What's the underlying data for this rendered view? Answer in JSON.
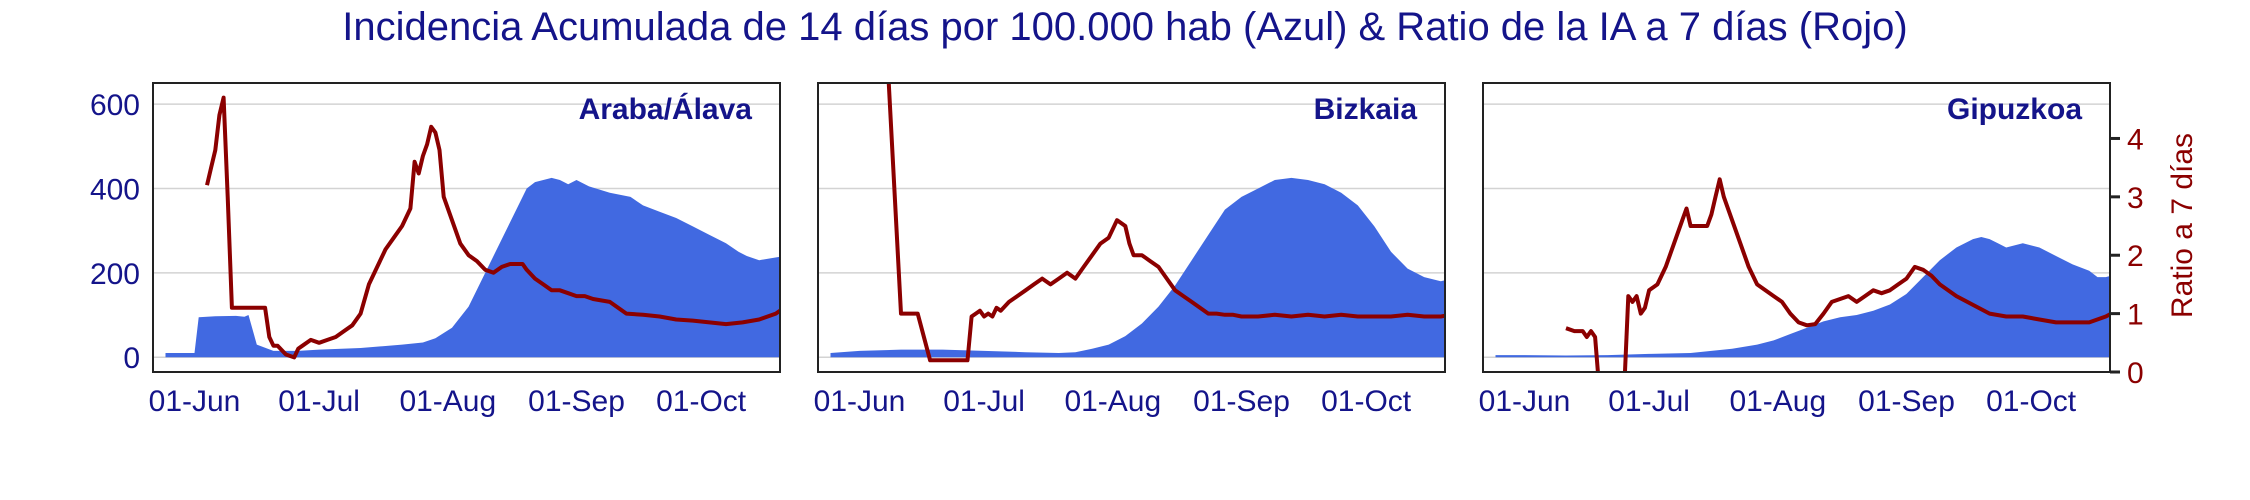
{
  "title": "Incidencia Acumulada de 14 días por 100.000 hab (Azul) & Ratio de la IA a 7 días (Rojo)",
  "colors": {
    "area": "#4169e1",
    "ratio": "#8b0000",
    "text": "#14148a",
    "grid": "#d3d3d3"
  },
  "chart_data": {
    "type": "area",
    "x_ticks": [
      "01-Jun",
      "01-Jul",
      "01-Aug",
      "01-Sep",
      "01-Oct"
    ],
    "x_tick_days": [
      0,
      30,
      61,
      92,
      122
    ],
    "xlim_days": [
      -10,
      141
    ],
    "ylim_left": [
      -35,
      650
    ],
    "ylim_right": [
      0,
      4.95
    ],
    "y_ticks_left": [
      0,
      200,
      400,
      600
    ],
    "y_ticks_right": [
      0,
      1,
      2,
      3,
      4
    ],
    "ylabel_right": "Ratio a 7 días",
    "grid": "horizontal",
    "panels": [
      {
        "name": "Araba/Álava",
        "incidence": [
          [
            -7,
            10
          ],
          [
            -3,
            10
          ],
          [
            0,
            10
          ],
          [
            1,
            95
          ],
          [
            5,
            97
          ],
          [
            10,
            98
          ],
          [
            12,
            96
          ],
          [
            13,
            100
          ],
          [
            15,
            30
          ],
          [
            19,
            15
          ],
          [
            25,
            15
          ],
          [
            30,
            18
          ],
          [
            40,
            22
          ],
          [
            50,
            30
          ],
          [
            55,
            35
          ],
          [
            58,
            45
          ],
          [
            62,
            70
          ],
          [
            66,
            120
          ],
          [
            70,
            200
          ],
          [
            74,
            280
          ],
          [
            78,
            360
          ],
          [
            80,
            400
          ],
          [
            82,
            415
          ],
          [
            86,
            425
          ],
          [
            88,
            420
          ],
          [
            90,
            410
          ],
          [
            92,
            420
          ],
          [
            95,
            405
          ],
          [
            100,
            390
          ],
          [
            105,
            380
          ],
          [
            108,
            360
          ],
          [
            112,
            345
          ],
          [
            116,
            330
          ],
          [
            120,
            310
          ],
          [
            124,
            290
          ],
          [
            128,
            270
          ],
          [
            131,
            250
          ],
          [
            133,
            240
          ],
          [
            136,
            230
          ],
          [
            139,
            235
          ],
          [
            142,
            240
          ],
          [
            145,
            260
          ],
          [
            147,
            295
          ],
          [
            149,
            320
          ]
        ],
        "ratio": [
          [
            3,
            3.2
          ],
          [
            4,
            3.5
          ],
          [
            5,
            3.8
          ],
          [
            6,
            4.4
          ],
          [
            7,
            4.7
          ],
          [
            8,
            3.0
          ],
          [
            9,
            1.1
          ],
          [
            11,
            1.1
          ],
          [
            13,
            1.1
          ],
          [
            15,
            1.1
          ],
          [
            16,
            1.1
          ],
          [
            17,
            1.1
          ],
          [
            18,
            0.6
          ],
          [
            19,
            0.45
          ],
          [
            20,
            0.45
          ],
          [
            22,
            0.3
          ],
          [
            24,
            0.25
          ],
          [
            25,
            0.4
          ],
          [
            26,
            0.45
          ],
          [
            28,
            0.55
          ],
          [
            30,
            0.5
          ],
          [
            32,
            0.55
          ],
          [
            34,
            0.6
          ],
          [
            36,
            0.7
          ],
          [
            38,
            0.8
          ],
          [
            40,
            1.0
          ],
          [
            42,
            1.5
          ],
          [
            44,
            1.8
          ],
          [
            46,
            2.1
          ],
          [
            48,
            2.3
          ],
          [
            50,
            2.5
          ],
          [
            52,
            2.8
          ],
          [
            53,
            3.6
          ],
          [
            54,
            3.4
          ],
          [
            55,
            3.7
          ],
          [
            56,
            3.9
          ],
          [
            57,
            4.2
          ],
          [
            58,
            4.1
          ],
          [
            59,
            3.8
          ],
          [
            60,
            3.0
          ],
          [
            62,
            2.6
          ],
          [
            64,
            2.2
          ],
          [
            66,
            2.0
          ],
          [
            68,
            1.9
          ],
          [
            70,
            1.75
          ],
          [
            72,
            1.7
          ],
          [
            74,
            1.8
          ],
          [
            76,
            1.85
          ],
          [
            78,
            1.85
          ],
          [
            79,
            1.85
          ],
          [
            80,
            1.75
          ],
          [
            82,
            1.6
          ],
          [
            84,
            1.5
          ],
          [
            86,
            1.4
          ],
          [
            88,
            1.4
          ],
          [
            90,
            1.35
          ],
          [
            92,
            1.3
          ],
          [
            94,
            1.3
          ],
          [
            96,
            1.25
          ],
          [
            100,
            1.2
          ],
          [
            104,
            1.0
          ],
          [
            108,
            0.98
          ],
          [
            112,
            0.95
          ],
          [
            116,
            0.9
          ],
          [
            120,
            0.88
          ],
          [
            124,
            0.85
          ],
          [
            128,
            0.82
          ],
          [
            132,
            0.85
          ],
          [
            136,
            0.9
          ],
          [
            140,
            1.0
          ],
          [
            142,
            1.1
          ],
          [
            144,
            1.3
          ],
          [
            146,
            1.35
          ],
          [
            148,
            1.4
          ],
          [
            150,
            1.45
          ]
        ]
      },
      {
        "name": "Bizkaia",
        "incidence": [
          [
            -7,
            10
          ],
          [
            0,
            15
          ],
          [
            10,
            18
          ],
          [
            20,
            18
          ],
          [
            30,
            15
          ],
          [
            40,
            12
          ],
          [
            48,
            10
          ],
          [
            52,
            12
          ],
          [
            56,
            20
          ],
          [
            60,
            30
          ],
          [
            64,
            50
          ],
          [
            68,
            80
          ],
          [
            72,
            120
          ],
          [
            76,
            170
          ],
          [
            80,
            230
          ],
          [
            84,
            290
          ],
          [
            88,
            350
          ],
          [
            92,
            380
          ],
          [
            96,
            400
          ],
          [
            100,
            420
          ],
          [
            104,
            425
          ],
          [
            108,
            420
          ],
          [
            112,
            410
          ],
          [
            116,
            390
          ],
          [
            120,
            360
          ],
          [
            124,
            310
          ],
          [
            128,
            250
          ],
          [
            132,
            210
          ],
          [
            136,
            190
          ],
          [
            140,
            180
          ],
          [
            144,
            190
          ],
          [
            148,
            220
          ],
          [
            152,
            280
          ],
          [
            154,
            330
          ],
          [
            156,
            375
          ]
        ],
        "ratio": [
          [
            7,
            5.0
          ],
          [
            10,
            1.0
          ],
          [
            12,
            1.0
          ],
          [
            14,
            1.0
          ],
          [
            17,
            0.2
          ],
          [
            20,
            0.2
          ],
          [
            24,
            0.2
          ],
          [
            26,
            0.2
          ],
          [
            27,
            0.95
          ],
          [
            28,
            1.0
          ],
          [
            29,
            1.05
          ],
          [
            30,
            0.95
          ],
          [
            31,
            1.0
          ],
          [
            32,
            0.95
          ],
          [
            33,
            1.1
          ],
          [
            34,
            1.05
          ],
          [
            36,
            1.2
          ],
          [
            38,
            1.3
          ],
          [
            40,
            1.4
          ],
          [
            42,
            1.5
          ],
          [
            44,
            1.6
          ],
          [
            46,
            1.5
          ],
          [
            48,
            1.6
          ],
          [
            50,
            1.7
          ],
          [
            52,
            1.6
          ],
          [
            54,
            1.8
          ],
          [
            56,
            2.0
          ],
          [
            58,
            2.2
          ],
          [
            60,
            2.3
          ],
          [
            62,
            2.6
          ],
          [
            64,
            2.5
          ],
          [
            65,
            2.2
          ],
          [
            66,
            2.0
          ],
          [
            68,
            2.0
          ],
          [
            70,
            1.9
          ],
          [
            72,
            1.8
          ],
          [
            74,
            1.6
          ],
          [
            76,
            1.4
          ],
          [
            78,
            1.3
          ],
          [
            80,
            1.2
          ],
          [
            82,
            1.1
          ],
          [
            84,
            1.0
          ],
          [
            86,
            1.0
          ],
          [
            88,
            0.98
          ],
          [
            90,
            0.98
          ],
          [
            92,
            0.95
          ],
          [
            96,
            0.95
          ],
          [
            100,
            0.98
          ],
          [
            104,
            0.95
          ],
          [
            108,
            0.98
          ],
          [
            112,
            0.95
          ],
          [
            116,
            0.98
          ],
          [
            120,
            0.95
          ],
          [
            124,
            0.95
          ],
          [
            128,
            0.95
          ],
          [
            132,
            0.98
          ],
          [
            136,
            0.95
          ],
          [
            140,
            0.95
          ],
          [
            144,
            1.0
          ],
          [
            148,
            1.1
          ],
          [
            152,
            1.15
          ],
          [
            155,
            1.25
          ],
          [
            156,
            1.2
          ]
        ]
      },
      {
        "name": "Gipuzkoa",
        "incidence": [
          [
            -7,
            5
          ],
          [
            0,
            5
          ],
          [
            10,
            4
          ],
          [
            20,
            5
          ],
          [
            30,
            8
          ],
          [
            40,
            10
          ],
          [
            50,
            20
          ],
          [
            56,
            30
          ],
          [
            60,
            40
          ],
          [
            64,
            55
          ],
          [
            68,
            70
          ],
          [
            72,
            85
          ],
          [
            76,
            95
          ],
          [
            80,
            100
          ],
          [
            84,
            110
          ],
          [
            88,
            125
          ],
          [
            92,
            150
          ],
          [
            96,
            190
          ],
          [
            100,
            230
          ],
          [
            104,
            260
          ],
          [
            108,
            280
          ],
          [
            110,
            285
          ],
          [
            112,
            280
          ],
          [
            114,
            270
          ],
          [
            116,
            260
          ],
          [
            120,
            270
          ],
          [
            124,
            260
          ],
          [
            128,
            240
          ],
          [
            132,
            220
          ],
          [
            136,
            205
          ],
          [
            138,
            190
          ],
          [
            140,
            190
          ],
          [
            144,
            200
          ],
          [
            148,
            280
          ],
          [
            152,
            400
          ],
          [
            156,
            500
          ],
          [
            158,
            580
          ],
          [
            160,
            620
          ]
        ],
        "ratio": [
          [
            10,
            0.75
          ],
          [
            12,
            0.7
          ],
          [
            14,
            0.7
          ],
          [
            15,
            0.6
          ],
          [
            16,
            0.7
          ],
          [
            17,
            0.6
          ],
          [
            18,
            -0.3
          ],
          [
            21,
            -0.3
          ],
          [
            24,
            -0.3
          ],
          [
            25,
            1.3
          ],
          [
            26,
            1.2
          ],
          [
            27,
            1.3
          ],
          [
            28,
            1.0
          ],
          [
            29,
            1.1
          ],
          [
            30,
            1.4
          ],
          [
            32,
            1.5
          ],
          [
            34,
            1.8
          ],
          [
            36,
            2.2
          ],
          [
            38,
            2.6
          ],
          [
            39,
            2.8
          ],
          [
            40,
            2.5
          ],
          [
            42,
            2.5
          ],
          [
            44,
            2.5
          ],
          [
            45,
            2.7
          ],
          [
            46,
            3.0
          ],
          [
            47,
            3.3
          ],
          [
            48,
            3.0
          ],
          [
            50,
            2.6
          ],
          [
            52,
            2.2
          ],
          [
            54,
            1.8
          ],
          [
            56,
            1.5
          ],
          [
            58,
            1.4
          ],
          [
            60,
            1.3
          ],
          [
            62,
            1.2
          ],
          [
            64,
            1.0
          ],
          [
            66,
            0.85
          ],
          [
            68,
            0.8
          ],
          [
            70,
            0.82
          ],
          [
            72,
            1.0
          ],
          [
            74,
            1.2
          ],
          [
            76,
            1.25
          ],
          [
            78,
            1.3
          ],
          [
            80,
            1.2
          ],
          [
            82,
            1.3
          ],
          [
            84,
            1.4
          ],
          [
            86,
            1.35
          ],
          [
            88,
            1.4
          ],
          [
            90,
            1.5
          ],
          [
            92,
            1.6
          ],
          [
            94,
            1.8
          ],
          [
            96,
            1.75
          ],
          [
            98,
            1.65
          ],
          [
            100,
            1.5
          ],
          [
            104,
            1.3
          ],
          [
            108,
            1.15
          ],
          [
            112,
            1.0
          ],
          [
            116,
            0.95
          ],
          [
            120,
            0.95
          ],
          [
            124,
            0.9
          ],
          [
            128,
            0.85
          ],
          [
            132,
            0.85
          ],
          [
            136,
            0.85
          ],
          [
            140,
            0.95
          ],
          [
            144,
            1.1
          ],
          [
            146,
            1.3
          ],
          [
            148,
            1.4
          ],
          [
            150,
            1.5
          ],
          [
            152,
            1.6
          ],
          [
            156,
            1.6
          ],
          [
            158,
            1.65
          ],
          [
            160,
            1.65
          ]
        ]
      }
    ]
  }
}
